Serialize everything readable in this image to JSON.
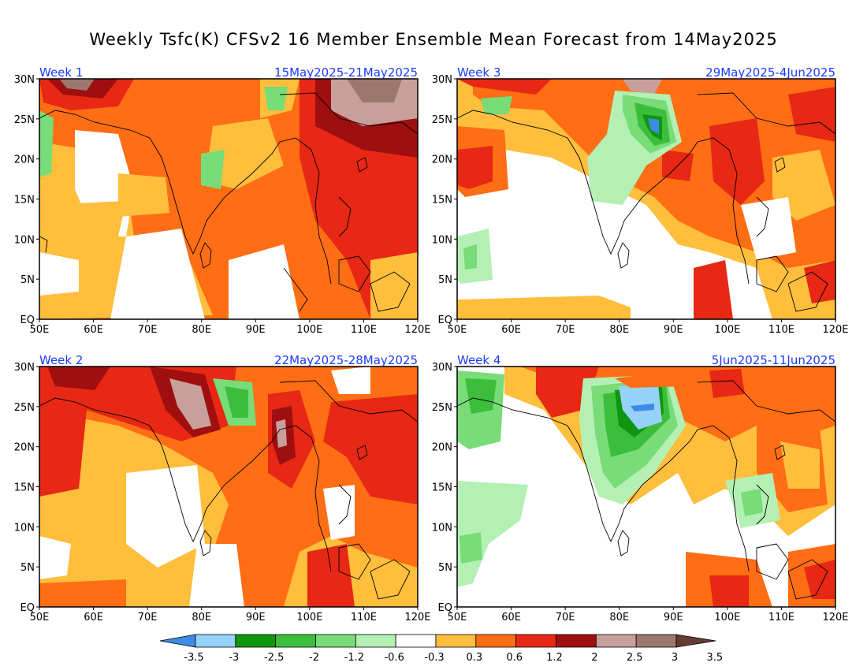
{
  "title": "Weekly Tsfc(K) CFSv2 16 Member Ensemble Mean Forecast from 14May2025",
  "panels": [
    {
      "label": "Week 1",
      "dates": "15May2025-21May2025"
    },
    {
      "label": "Week 3",
      "dates": "29May2025-4Jun2025"
    },
    {
      "label": "Week 2",
      "dates": "22May2025-28May2025"
    },
    {
      "label": "Week 4",
      "dates": "5Jun2025-11Jun2025"
    }
  ],
  "lat_ticks": [
    "30N",
    "25N",
    "20N",
    "15N",
    "10N",
    "5N",
    "EQ"
  ],
  "lon_ticks": [
    "50E",
    "60E",
    "70E",
    "80E",
    "90E",
    "100E",
    "110E",
    "120E"
  ],
  "colorbar": {
    "labels": [
      "-3.5",
      "-3",
      "-2.5",
      "-2",
      "-1.2",
      "-0.6",
      "-0.3",
      "0.3",
      "0.6",
      "1.2",
      "2",
      "2.5",
      "3",
      "3.5"
    ],
    "colors": [
      "#3c8ce6",
      "#96d2fa",
      "#0f960f",
      "#3cbe3c",
      "#78dc78",
      "#b4f0b4",
      "#ffffff",
      "#ffbe3c",
      "#ff6e14",
      "#e62814",
      "#a00f0f",
      "#c8a09b",
      "#9b786e",
      "#643c32"
    ]
  }
}
